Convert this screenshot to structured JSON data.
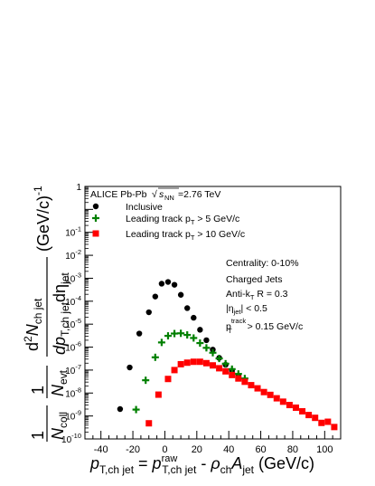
{
  "chart_data": {
    "type": "scatter",
    "header": "ALICE Pb-Pb",
    "energy_label": "=2.76 TeV",
    "energy_sqrt": "s",
    "energy_sub": "NN",
    "xlabel_parts": {
      "p": "p",
      "sub1": "T,ch jet",
      "eq": " = ",
      "p2": "p",
      "sup2": "raw",
      "sub2": "T,ch jet",
      "minus": " - ",
      "rho": "ρ",
      "sub3": "ch",
      "A": "A",
      "sub4": "jet",
      "unit": " (GeV/c)"
    },
    "ylabel_text": {
      "one": "1",
      "ncoll": "N",
      "ncoll_sub": "coll",
      "nevt": "N",
      "nevt_sub": "evt",
      "d2": "d",
      "d2_sup": "2",
      "nch": "N",
      "nch_sub": "ch jet",
      "dp": "dp",
      "dp_sub": "T,ch jet",
      "deta": "dη",
      "deta_sub": "jet",
      "unit": "(GeV/c)",
      "unit_sup": "-1"
    },
    "annotations": {
      "centrality": "Centrality: 0-10%",
      "charged": "Charged Jets",
      "antikt": "Anti-k",
      "antikt_sub": "T",
      "antikt_r": " R = 0.3",
      "eta": "|η",
      "eta_sub": "jet",
      "eta_val": "| < 0.5",
      "pt": "p",
      "pt_sup": "track",
      "pt_sub": "T",
      "pt_val": " > 0.15 GeV/c"
    },
    "legend": [
      {
        "label": "Inclusive",
        "color": "#000000",
        "marker": "circle"
      },
      {
        "label": "Leading track p",
        "sub": "T",
        "tail": " > 5 GeV/c",
        "color": "#008000",
        "marker": "cross"
      },
      {
        "label": "Leading track p",
        "sub": "T",
        "tail": " > 10 GeV/c",
        "color": "#ff0000",
        "marker": "square"
      }
    ],
    "xlim": [
      -50,
      110
    ],
    "ylim_log10": [
      -10,
      1
    ],
    "log_y": true,
    "xticks": [
      -40,
      -20,
      0,
      20,
      40,
      60,
      80,
      100
    ],
    "yticks": [
      {
        "exp": 1,
        "label": "1"
      },
      {
        "exp": -1,
        "label": "10",
        "sup": "-1"
      },
      {
        "exp": -2,
        "label": "10",
        "sup": "-2"
      },
      {
        "exp": -3,
        "label": "10",
        "sup": "-3"
      },
      {
        "exp": -4,
        "label": "10",
        "sup": "-4"
      },
      {
        "exp": -5,
        "label": "10",
        "sup": "-5"
      },
      {
        "exp": -6,
        "label": "10",
        "sup": "-6"
      },
      {
        "exp": -7,
        "label": "10",
        "sup": "-7"
      },
      {
        "exp": -8,
        "label": "10",
        "sup": "-8"
      },
      {
        "exp": -9,
        "label": "10",
        "sup": "-9"
      },
      {
        "exp": -10,
        "label": "10",
        "sup": "-10"
      }
    ],
    "series": [
      {
        "name": "Inclusive",
        "color": "#000000",
        "marker": "circle",
        "points": [
          [
            -28,
            2e-09
          ],
          [
            -22,
            1.3e-07
          ],
          [
            -16,
            3.9e-06
          ],
          [
            -10,
            3.3e-05
          ],
          [
            -6,
            0.00016
          ],
          [
            -2,
            0.00058
          ],
          [
            2,
            0.00069
          ],
          [
            6,
            0.00052
          ],
          [
            10,
            0.00019
          ],
          [
            14,
            5e-05
          ],
          [
            18,
            1.9e-05
          ],
          [
            22,
            5.7e-06
          ],
          [
            26,
            2e-06
          ],
          [
            30,
            7.8e-07
          ],
          [
            34,
            3.4e-07
          ],
          [
            38,
            1.7e-07
          ],
          [
            42,
            9.3e-08
          ],
          [
            46,
            5.6e-08
          ],
          [
            50,
            3.6e-08
          ]
        ]
      },
      {
        "name": "Leading track pT > 5 GeV/c",
        "color": "#008000",
        "marker": "cross",
        "points": [
          [
            -18,
            1.9e-09
          ],
          [
            -12,
            3.6e-08
          ],
          [
            -6,
            3.6e-07
          ],
          [
            -2,
            1.6e-06
          ],
          [
            2,
            3.1e-06
          ],
          [
            6,
            3.9e-06
          ],
          [
            10,
            4e-06
          ],
          [
            14,
            3.4e-06
          ],
          [
            18,
            2.5e-06
          ],
          [
            22,
            1.5e-06
          ],
          [
            26,
            9.3e-07
          ],
          [
            30,
            5.7e-07
          ],
          [
            34,
            3.2e-07
          ],
          [
            38,
            1.9e-07
          ],
          [
            42,
            1.1e-07
          ],
          [
            46,
            6.8e-08
          ],
          [
            50,
            4.3e-08
          ]
        ]
      },
      {
        "name": "Leading track pT > 10 GeV/c",
        "color": "#ff0000",
        "marker": "square",
        "points": [
          [
            -10,
            4.8e-10
          ],
          [
            -4,
            8.5e-09
          ],
          [
            2,
            4.1e-08
          ],
          [
            6,
            1e-07
          ],
          [
            10,
            1.8e-07
          ],
          [
            14,
            2.1e-07
          ],
          [
            18,
            2.3e-07
          ],
          [
            22,
            2.3e-07
          ],
          [
            26,
            2e-07
          ],
          [
            30,
            1.6e-07
          ],
          [
            34,
            1.2e-07
          ],
          [
            38,
            8.8e-08
          ],
          [
            42,
            6.1e-08
          ],
          [
            46,
            4.3e-08
          ],
          [
            50,
            3.1e-08
          ],
          [
            54,
            2.2e-08
          ],
          [
            58,
            1.6e-08
          ],
          [
            62,
            1.1e-08
          ],
          [
            66,
            8.3e-09
          ],
          [
            70,
            5.9e-09
          ],
          [
            74,
            4.2e-09
          ],
          [
            78,
            3e-09
          ],
          [
            82,
            2.3e-09
          ],
          [
            86,
            1.6e-09
          ],
          [
            90,
            1.1e-09
          ],
          [
            94,
            8.3e-10
          ],
          [
            98,
            5e-10
          ],
          [
            102,
            5.6e-10
          ],
          [
            106,
            3.3e-10
          ]
        ]
      }
    ]
  }
}
